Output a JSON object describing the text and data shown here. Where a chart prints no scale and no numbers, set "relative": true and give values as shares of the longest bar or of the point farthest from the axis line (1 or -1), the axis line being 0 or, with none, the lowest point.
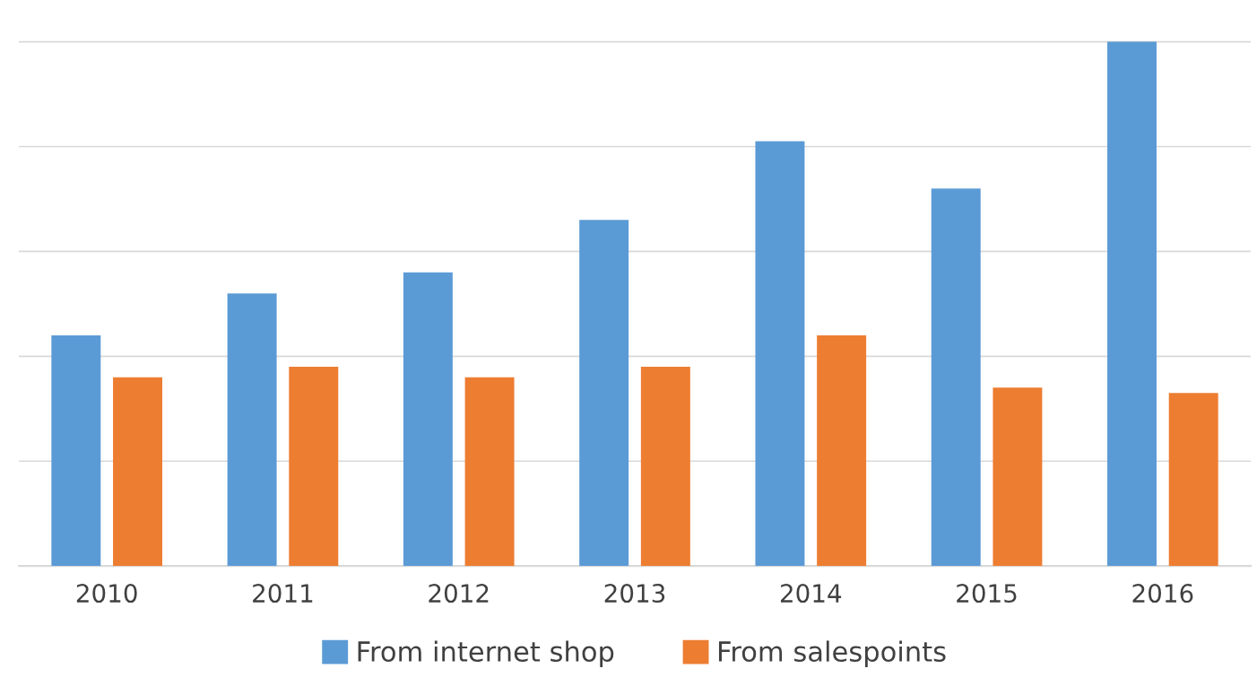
{
  "chart_data": {
    "type": "bar",
    "relative": true,
    "categories": [
      "2010",
      "2011",
      "2012",
      "2013",
      "2014",
      "2015",
      "2016"
    ],
    "series": [
      {
        "name": "From internet shop",
        "color": "#5b9bd5",
        "values": [
          0.44,
          0.52,
          0.56,
          0.66,
          0.81,
          0.72,
          1.0
        ]
      },
      {
        "name": "From salespoints",
        "color": "#ed7d31",
        "values": [
          0.36,
          0.38,
          0.36,
          0.38,
          0.44,
          0.34,
          0.33
        ]
      }
    ],
    "grid": "y",
    "legend": "bottom"
  }
}
